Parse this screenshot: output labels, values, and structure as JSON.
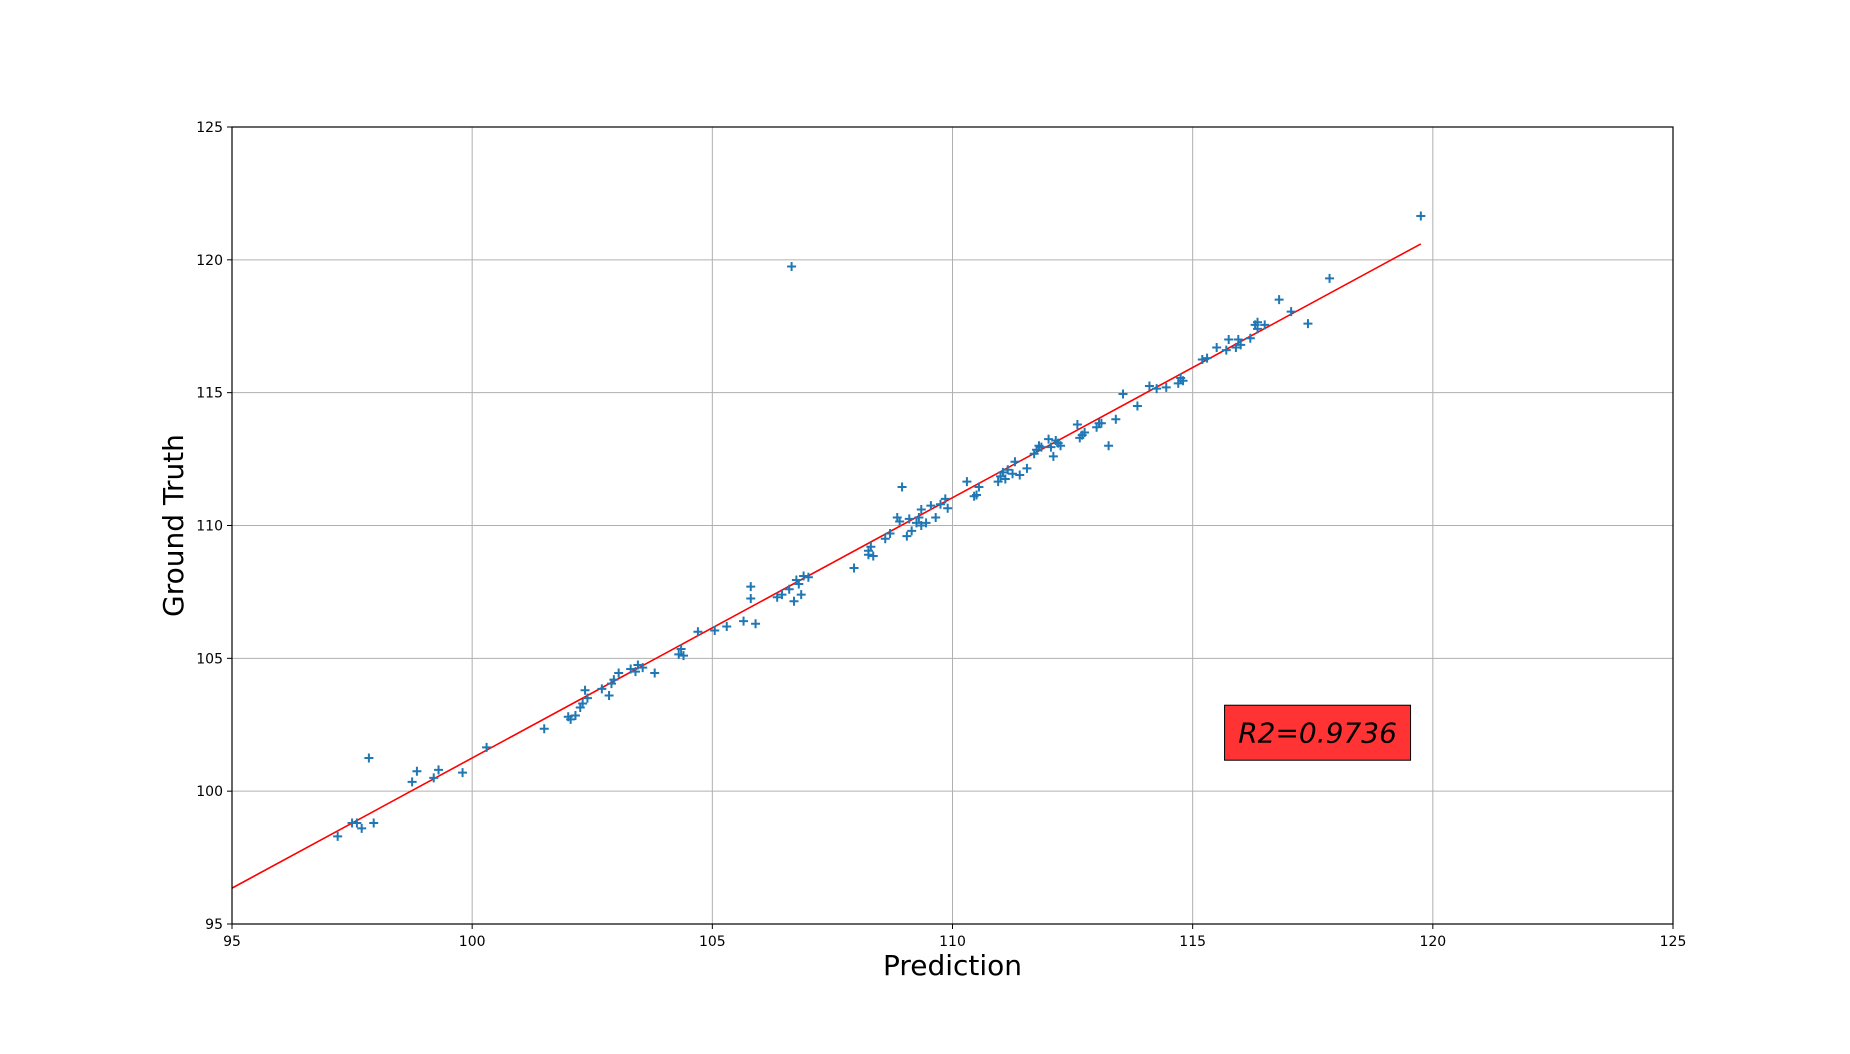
{
  "chart_data": {
    "type": "scatter",
    "title": "",
    "xlabel": "Prediction",
    "ylabel": "Ground Truth",
    "xlim": [
      95,
      125
    ],
    "ylim": [
      95,
      125
    ],
    "xticks": [
      "95",
      "100",
      "105",
      "110",
      "115",
      "120",
      "125"
    ],
    "yticks": [
      "95",
      "100",
      "105",
      "110",
      "115",
      "120",
      "125"
    ],
    "grid": true,
    "marker": "+",
    "colors": {
      "points": "#1f77b4",
      "fit_line": "#ff0000",
      "annotation_box": "#ff3333",
      "grid": "#b0b0b0"
    },
    "fit_line": {
      "x": [
        95.0,
        119.75
      ],
      "y": [
        96.35,
        120.6
      ]
    },
    "annotation": {
      "text": "R2=0.9736",
      "x": 117.6,
      "y": 102.2
    },
    "points": [
      [
        97.2,
        98.3
      ],
      [
        97.5,
        98.8
      ],
      [
        97.6,
        98.8
      ],
      [
        97.7,
        98.6
      ],
      [
        97.85,
        101.25
      ],
      [
        97.95,
        98.8
      ],
      [
        98.75,
        100.35
      ],
      [
        98.85,
        100.75
      ],
      [
        99.2,
        100.5
      ],
      [
        99.3,
        100.8
      ],
      [
        99.8,
        100.7
      ],
      [
        100.3,
        101.65
      ],
      [
        101.5,
        102.35
      ],
      [
        102.0,
        102.8
      ],
      [
        102.05,
        102.7
      ],
      [
        102.15,
        102.85
      ],
      [
        102.25,
        103.15
      ],
      [
        102.3,
        103.3
      ],
      [
        102.35,
        103.8
      ],
      [
        102.4,
        103.5
      ],
      [
        102.7,
        103.85
      ],
      [
        102.85,
        103.6
      ],
      [
        102.9,
        104.05
      ],
      [
        102.95,
        104.2
      ],
      [
        103.05,
        104.45
      ],
      [
        103.3,
        104.6
      ],
      [
        103.4,
        104.5
      ],
      [
        103.45,
        104.75
      ],
      [
        103.55,
        104.65
      ],
      [
        103.8,
        104.45
      ],
      [
        104.3,
        105.15
      ],
      [
        104.35,
        105.35
      ],
      [
        104.4,
        105.1
      ],
      [
        104.7,
        106.0
      ],
      [
        105.05,
        106.05
      ],
      [
        105.3,
        106.2
      ],
      [
        105.65,
        106.4
      ],
      [
        105.8,
        107.7
      ],
      [
        105.8,
        107.25
      ],
      [
        105.9,
        106.3
      ],
      [
        106.35,
        107.3
      ],
      [
        106.45,
        107.4
      ],
      [
        106.6,
        107.6
      ],
      [
        106.65,
        119.75
      ],
      [
        106.7,
        107.15
      ],
      [
        106.75,
        107.95
      ],
      [
        106.8,
        107.8
      ],
      [
        106.85,
        107.4
      ],
      [
        106.9,
        108.1
      ],
      [
        107.0,
        108.05
      ],
      [
        107.95,
        108.4
      ],
      [
        108.25,
        108.9
      ],
      [
        108.25,
        109.05
      ],
      [
        108.3,
        109.2
      ],
      [
        108.35,
        108.85
      ],
      [
        108.6,
        109.5
      ],
      [
        108.7,
        109.7
      ],
      [
        108.85,
        110.3
      ],
      [
        108.9,
        110.15
      ],
      [
        108.95,
        111.45
      ],
      [
        109.05,
        109.6
      ],
      [
        109.1,
        110.25
      ],
      [
        109.15,
        109.8
      ],
      [
        109.25,
        110.1
      ],
      [
        109.3,
        110.3
      ],
      [
        109.35,
        110.6
      ],
      [
        109.35,
        110.0
      ],
      [
        109.45,
        110.1
      ],
      [
        109.55,
        110.75
      ],
      [
        109.65,
        110.3
      ],
      [
        109.75,
        110.8
      ],
      [
        109.85,
        111.0
      ],
      [
        109.9,
        110.65
      ],
      [
        110.3,
        111.65
      ],
      [
        110.45,
        111.1
      ],
      [
        110.5,
        111.15
      ],
      [
        110.55,
        111.45
      ],
      [
        110.95,
        111.65
      ],
      [
        111.0,
        111.85
      ],
      [
        111.05,
        112.0
      ],
      [
        111.1,
        111.75
      ],
      [
        111.15,
        112.1
      ],
      [
        111.25,
        111.95
      ],
      [
        111.3,
        112.4
      ],
      [
        111.4,
        111.9
      ],
      [
        111.55,
        112.15
      ],
      [
        111.7,
        112.7
      ],
      [
        111.75,
        112.85
      ],
      [
        111.8,
        113.0
      ],
      [
        111.85,
        112.95
      ],
      [
        112.0,
        113.25
      ],
      [
        112.05,
        112.95
      ],
      [
        112.1,
        112.6
      ],
      [
        112.15,
        113.2
      ],
      [
        112.2,
        113.1
      ],
      [
        112.25,
        113.0
      ],
      [
        112.6,
        113.8
      ],
      [
        112.65,
        113.3
      ],
      [
        112.7,
        113.4
      ],
      [
        112.75,
        113.5
      ],
      [
        113.0,
        113.7
      ],
      [
        113.05,
        113.85
      ],
      [
        113.1,
        113.85
      ],
      [
        113.25,
        113.0
      ],
      [
        113.4,
        114.0
      ],
      [
        113.55,
        114.95
      ],
      [
        113.85,
        114.5
      ],
      [
        114.1,
        115.25
      ],
      [
        114.25,
        115.15
      ],
      [
        114.45,
        115.2
      ],
      [
        114.7,
        115.35
      ],
      [
        114.75,
        115.55
      ],
      [
        114.8,
        115.45
      ],
      [
        115.2,
        116.25
      ],
      [
        115.3,
        116.3
      ],
      [
        115.5,
        116.7
      ],
      [
        115.7,
        116.6
      ],
      [
        115.75,
        117.0
      ],
      [
        115.9,
        116.7
      ],
      [
        115.95,
        117.0
      ],
      [
        116.0,
        116.8
      ],
      [
        116.2,
        117.05
      ],
      [
        116.3,
        117.55
      ],
      [
        116.35,
        117.4
      ],
      [
        116.35,
        117.65
      ],
      [
        116.5,
        117.55
      ],
      [
        116.8,
        118.5
      ],
      [
        117.05,
        118.05
      ],
      [
        117.4,
        117.6
      ],
      [
        117.85,
        119.3
      ],
      [
        119.75,
        121.65
      ]
    ]
  }
}
